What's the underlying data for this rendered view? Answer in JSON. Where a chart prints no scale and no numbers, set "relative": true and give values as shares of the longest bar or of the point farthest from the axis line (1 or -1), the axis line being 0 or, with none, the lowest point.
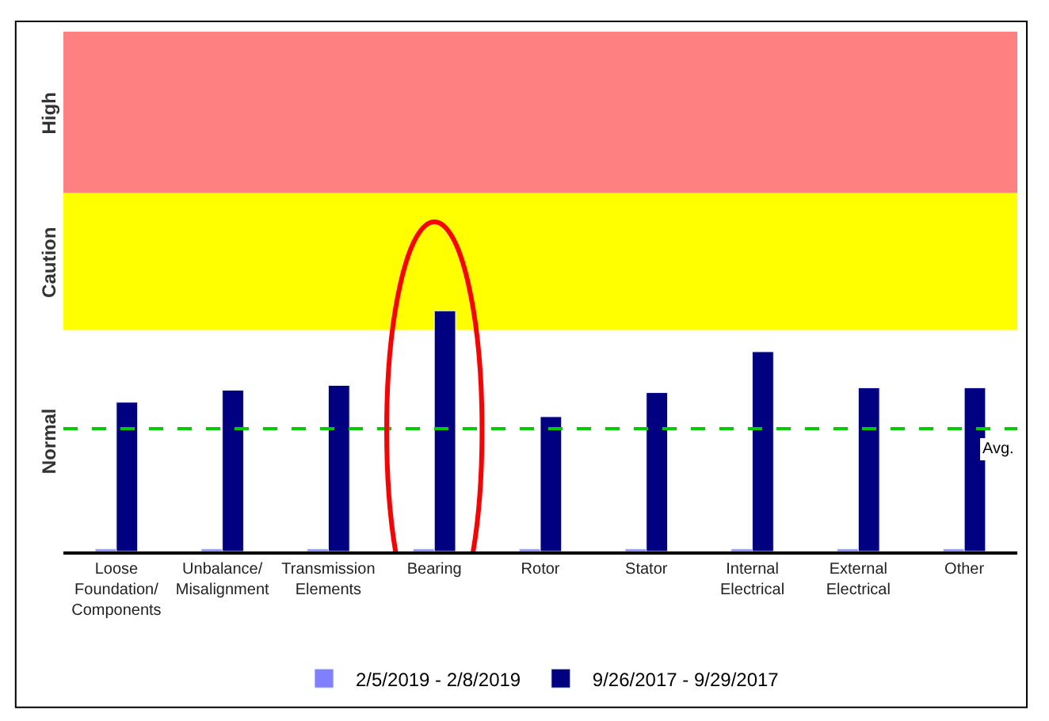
{
  "chart_data": {
    "type": "bar",
    "relative": true,
    "categories": [
      "Loose Foundation/ Components",
      "Unbalance/ Misalignment",
      "Transmission Elements",
      "Bearing",
      "Rotor",
      "Stator",
      "Internal Electrical",
      "External Electrical",
      "Other"
    ],
    "series": [
      {
        "name": "2/5/2019 - 2/8/2019",
        "color": "#8080ff",
        "values": [
          0.01,
          0.01,
          0.01,
          0.01,
          0.01,
          0.01,
          0.01,
          0.01,
          0.01
        ]
      },
      {
        "name": "9/26/2017 - 9/29/2017",
        "color": "#000080",
        "values": [
          0.62,
          0.67,
          0.69,
          1.0,
          0.56,
          0.66,
          0.83,
          0.68,
          0.68
        ]
      }
    ],
    "bands": [
      {
        "axis": "y",
        "from": 0.92,
        "to": 1.49,
        "label": "Caution",
        "color": "#ffff00"
      },
      {
        "axis": "y",
        "from": 1.49,
        "to": 2.16,
        "label": "High",
        "color": "#ff8080"
      }
    ],
    "ref_lines": [
      {
        "axis": "y",
        "value": 0.51,
        "label": "Avg.",
        "color": "#00cc00",
        "line_style": "dashed"
      }
    ],
    "annotations": [
      "Normal"
    ],
    "legend": "bottom",
    "grid": false
  }
}
